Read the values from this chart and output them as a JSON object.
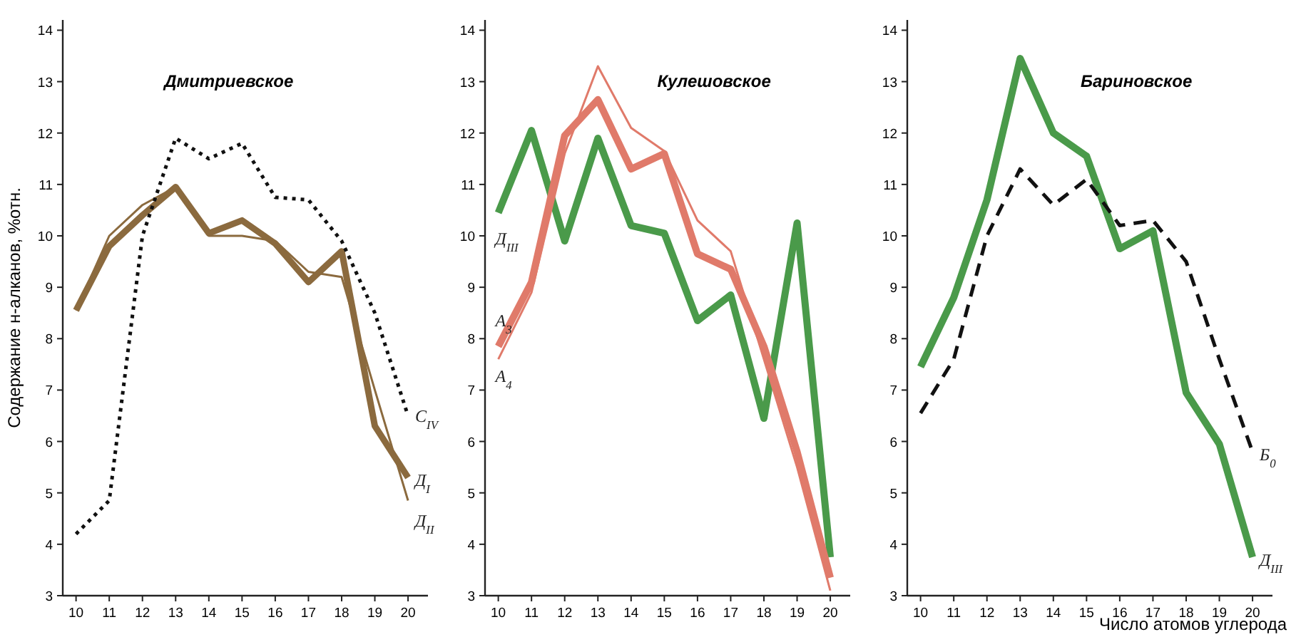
{
  "chart_data": [
    {
      "type": "line",
      "title": "Дмитриевское",
      "ylabel": "Содержание н-алканов, %отн.",
      "x": [
        10,
        11,
        12,
        13,
        14,
        15,
        16,
        17,
        18,
        19,
        20
      ],
      "xlim": [
        9.6,
        20.6
      ],
      "xticks": [
        10,
        11,
        12,
        13,
        14,
        15,
        16,
        17,
        18,
        19,
        20
      ],
      "ylim": [
        3,
        14.2
      ],
      "yticks": [
        3,
        4,
        5,
        6,
        7,
        8,
        9,
        10,
        11,
        12,
        13,
        14
      ],
      "grid": false,
      "marker": "none",
      "series": [
        {
          "name": "Д$_{I}$",
          "color": "#8b6a3e",
          "values": [
            8.55,
            9.8,
            10.4,
            10.95,
            10.05,
            10.3,
            9.85,
            9.1,
            9.7,
            6.3,
            5.3
          ],
          "line_style": "solid"
        },
        {
          "name": "Д$_{II}$",
          "color": "#8b6a3e",
          "values": [
            8.55,
            10.0,
            10.6,
            10.95,
            10.0,
            10.0,
            9.9,
            9.3,
            9.2,
            7.0,
            4.85
          ],
          "line_style": "solid"
        },
        {
          "name": "С$_{IV}$",
          "color": "#111111",
          "values": [
            4.2,
            4.85,
            10.0,
            11.9,
            11.5,
            11.8,
            10.75,
            10.7,
            9.9,
            8.5,
            6.5
          ],
          "line_style": "dotted"
        }
      ]
    },
    {
      "type": "line",
      "title": "Кулешовское",
      "x": [
        10,
        11,
        12,
        13,
        14,
        15,
        16,
        17,
        18,
        19,
        20
      ],
      "xlim": [
        9.6,
        20.6
      ],
      "xticks": [
        10,
        11,
        12,
        13,
        14,
        15,
        16,
        17,
        18,
        19,
        20
      ],
      "ylim": [
        3,
        14.2
      ],
      "yticks": [
        3,
        4,
        5,
        6,
        7,
        8,
        9,
        10,
        11,
        12,
        13,
        14
      ],
      "grid": false,
      "marker": "none",
      "series": [
        {
          "name": "Д$_{III}$",
          "color": "#4a9a4a",
          "values": [
            10.45,
            12.05,
            9.9,
            11.9,
            10.2,
            10.05,
            8.35,
            8.85,
            6.45,
            10.25,
            3.75
          ],
          "line_style": "solid"
        },
        {
          "name": "A$_{3}$",
          "color": "#e07a6a",
          "values": [
            7.85,
            9.1,
            11.95,
            12.65,
            11.3,
            11.6,
            9.65,
            9.35,
            7.85,
            5.8,
            3.35
          ],
          "line_style": "solid"
        },
        {
          "name": "A$_{4}$",
          "color": "#e07a6a",
          "values": [
            7.6,
            8.9,
            11.6,
            13.3,
            12.1,
            11.65,
            10.3,
            9.7,
            7.6,
            5.5,
            3.1
          ],
          "line_style": "solid"
        }
      ]
    },
    {
      "type": "line",
      "title": "Бариновское",
      "xlabel": "Число атомов углерода",
      "x": [
        10,
        11,
        12,
        13,
        14,
        15,
        16,
        17,
        18,
        19,
        20
      ],
      "xlim": [
        9.6,
        20.6
      ],
      "xticks": [
        10,
        11,
        12,
        13,
        14,
        15,
        16,
        17,
        18,
        19,
        20
      ],
      "ylim": [
        3,
        14.2
      ],
      "yticks": [
        3,
        4,
        5,
        6,
        7,
        8,
        9,
        10,
        11,
        12,
        13,
        14
      ],
      "grid": false,
      "marker": "none",
      "series": [
        {
          "name": "Д$_{III}$",
          "color": "#4a9a4a",
          "values": [
            7.45,
            8.8,
            10.7,
            13.45,
            12.0,
            11.55,
            9.75,
            10.1,
            6.95,
            5.95,
            3.75
          ],
          "line_style": "solid"
        },
        {
          "name": "Б$_{0}$",
          "color": "#111111",
          "values": [
            6.55,
            7.6,
            10.0,
            11.3,
            10.6,
            11.1,
            10.2,
            10.3,
            9.5,
            7.6,
            5.8
          ],
          "line_style": "dashed"
        }
      ]
    }
  ]
}
